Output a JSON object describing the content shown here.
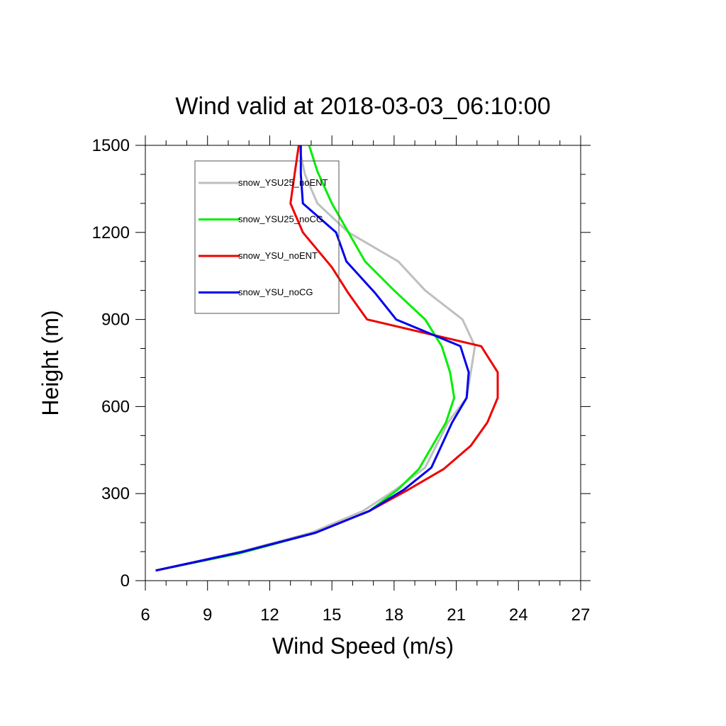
{
  "chart_data": {
    "type": "line",
    "title": "Wind valid at 2018-03-03_06:10:00",
    "xlabel": "Wind Speed (m/s)",
    "ylabel": "Height (m)",
    "xlim": [
      6,
      27
    ],
    "ylim": [
      0,
      1500
    ],
    "xticks": [
      6,
      9,
      12,
      15,
      18,
      21,
      24,
      27
    ],
    "yticks": [
      0,
      300,
      600,
      900,
      1200,
      1500
    ],
    "grid": false,
    "legend_position": "top-left",
    "series": [
      {
        "name": "snow_YSU25_noENT",
        "color": "#bfbfbf",
        "x": [
          6.5,
          10.6,
          14.0,
          16.5,
          18.1,
          19.5,
          20.6,
          21.5,
          21.7,
          21.9,
          21.3,
          19.5,
          18.2,
          15.8,
          14.3,
          13.7,
          13.4
        ],
        "y": [
          35,
          100,
          165,
          240,
          315,
          390,
          545,
          630,
          718,
          808,
          900,
          1000,
          1100,
          1200,
          1300,
          1400,
          1500
        ]
      },
      {
        "name": "snow_YSU25_noCG",
        "color": "#00ee00",
        "x": [
          6.5,
          10.6,
          14.2,
          16.8,
          18.2,
          19.2,
          20.5,
          20.9,
          20.7,
          20.3,
          19.5,
          18.0,
          16.6,
          15.0,
          14.3,
          13.9
        ],
        "y": [
          35,
          95,
          165,
          240,
          315,
          385,
          545,
          630,
          718,
          808,
          900,
          1000,
          1100,
          1300,
          1410,
          1500
        ]
      },
      {
        "name": "snow_YSU_noENT",
        "color": "#ee0000",
        "x": [
          6.5,
          10.6,
          14.2,
          16.8,
          18.6,
          20.4,
          21.7,
          22.5,
          23.0,
          23.0,
          22.2,
          16.7,
          15.8,
          15.0,
          13.6,
          13.0,
          13.2,
          13.4
        ],
        "y": [
          35,
          98,
          165,
          240,
          310,
          385,
          465,
          545,
          630,
          718,
          808,
          900,
          990,
          1080,
          1200,
          1300,
          1400,
          1500
        ]
      },
      {
        "name": "snow_YSU_noCG",
        "color": "#0000ee",
        "x": [
          6.5,
          10.6,
          14.2,
          16.8,
          18.5,
          19.8,
          20.8,
          21.5,
          21.6,
          21.2,
          18.1,
          17.1,
          15.7,
          15.2,
          13.6,
          13.5,
          13.5
        ],
        "y": [
          35,
          98,
          165,
          240,
          315,
          390,
          545,
          630,
          718,
          808,
          900,
          990,
          1100,
          1200,
          1300,
          1400,
          1500
        ]
      }
    ]
  }
}
